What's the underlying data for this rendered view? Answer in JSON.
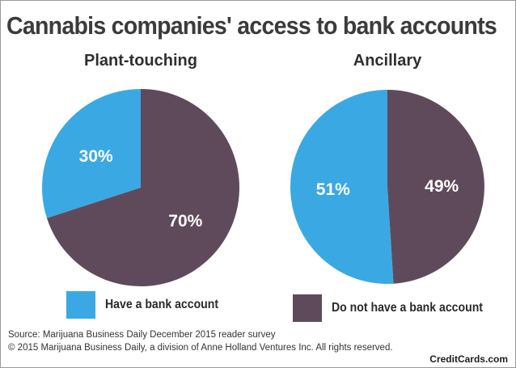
{
  "title": "Cannabis companies' access to bank accounts",
  "colors": {
    "have_account": "#3aa9e3",
    "no_account": "#5f4a5c",
    "title_text": "#3b3b3b"
  },
  "legend": {
    "have": "Have a bank account",
    "not_have": "Do not have a bank account"
  },
  "source": "Source: Marijuana Business Daily December 2015 reader survey",
  "copyright": "© 2015 Marijuana Business Daily, a division of Anne Holland Ventures Inc. All rights reserved.",
  "brand": "CreditCards.com",
  "chart_data": [
    {
      "type": "pie",
      "title": "Plant-touching",
      "slices": [
        {
          "label": "Have a bank account",
          "value": 30,
          "display": "30%"
        },
        {
          "label": "Do not have a bank account",
          "value": 70,
          "display": "70%"
        }
      ]
    },
    {
      "type": "pie",
      "title": "Ancillary",
      "slices": [
        {
          "label": "Have a bank account",
          "value": 51,
          "display": "51%"
        },
        {
          "label": "Do not have a bank account",
          "value": 49,
          "display": "49%"
        }
      ]
    }
  ]
}
